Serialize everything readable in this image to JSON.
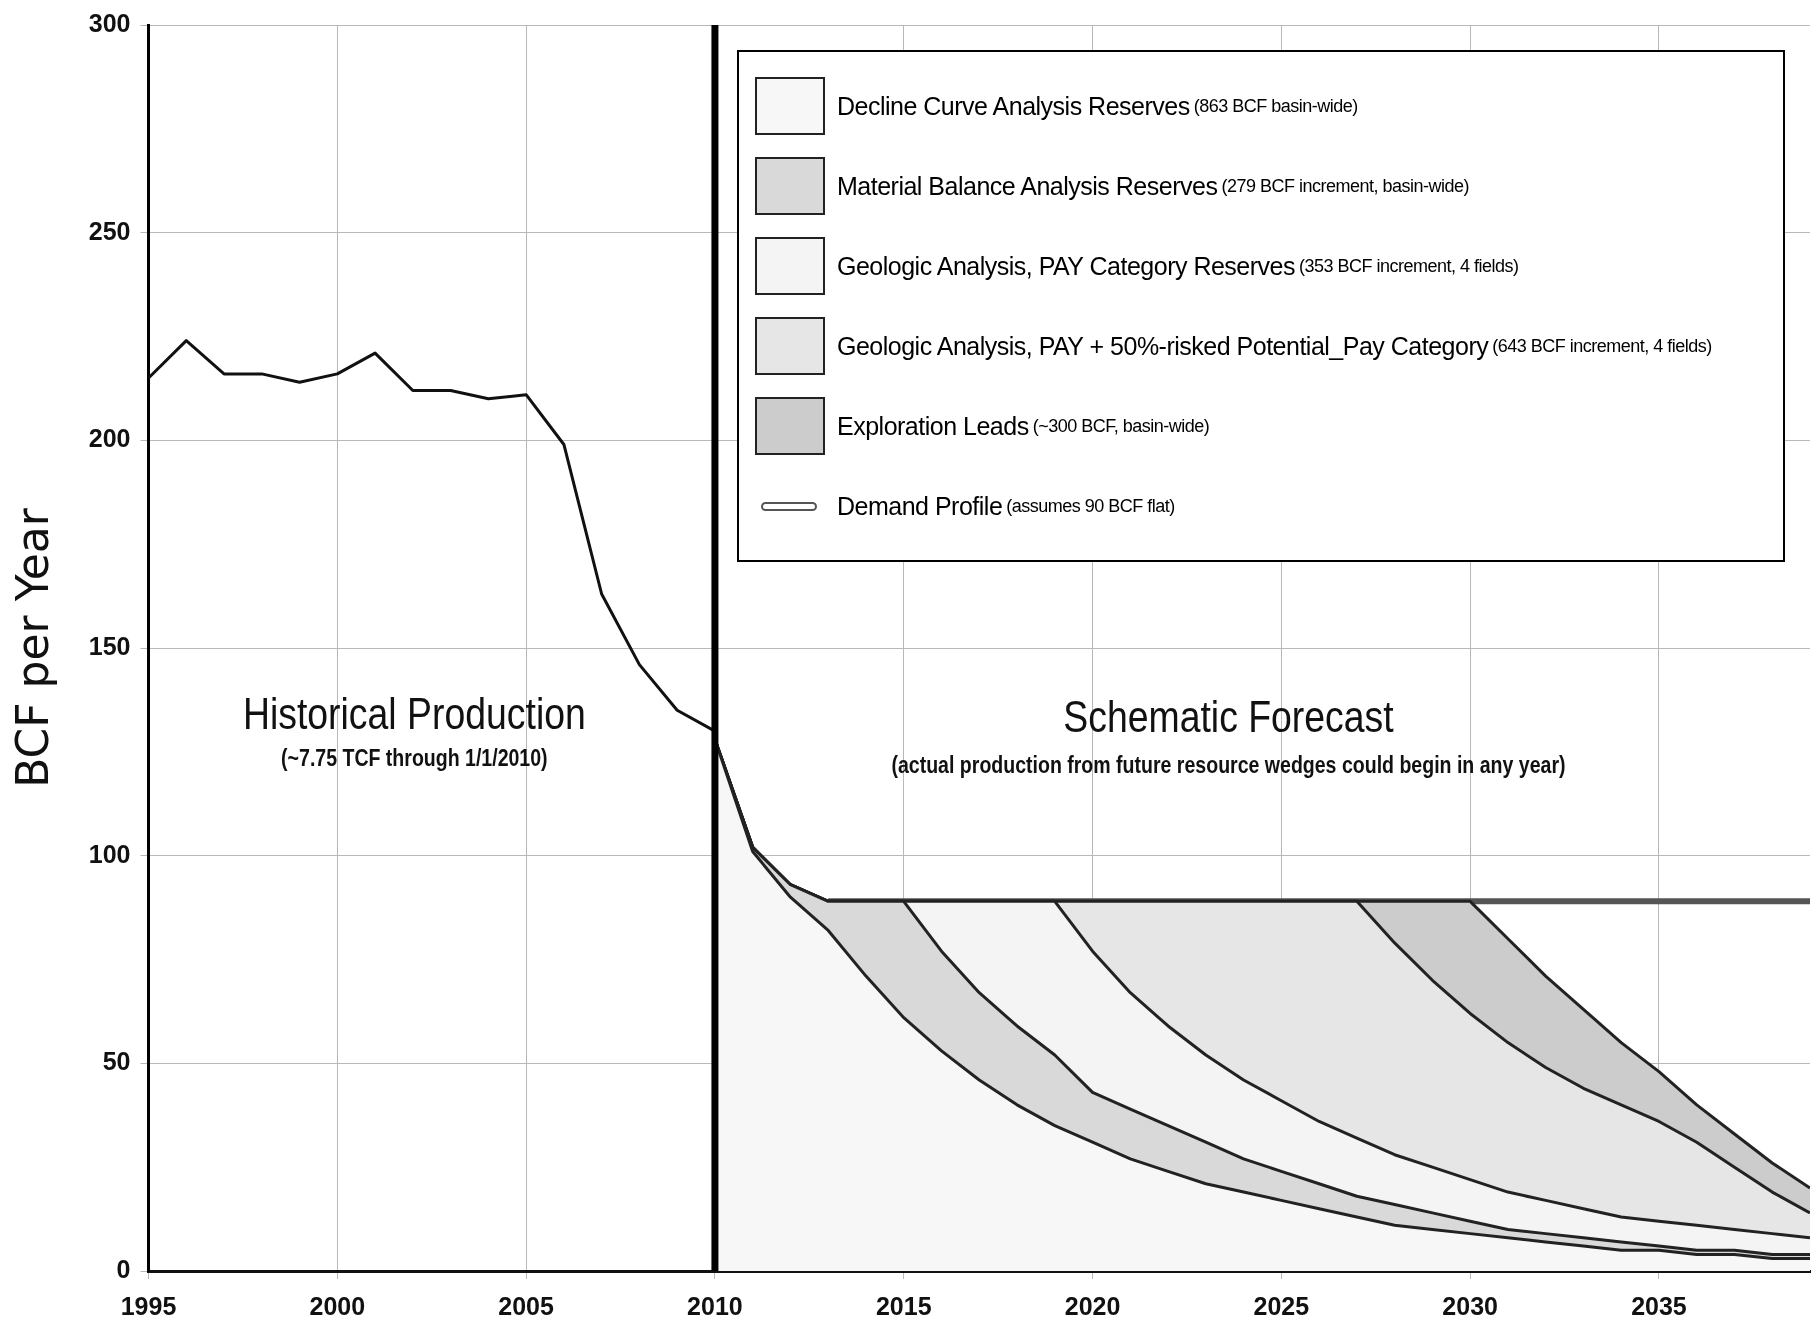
{
  "chart_data": {
    "type": "area",
    "ylabel": "BCF per Year",
    "stacked": true,
    "xlim": [
      1995,
      2039
    ],
    "xticks": [
      1995,
      2000,
      2005,
      2010,
      2015,
      2020,
      2025,
      2030,
      2035
    ],
    "ylim": [
      0,
      300
    ],
    "yticks": [
      0,
      50,
      100,
      150,
      200,
      250,
      300
    ],
    "grid": true,
    "legend": "top right",
    "marker": "none",
    "x": [
      2010,
      2011,
      2012,
      2013,
      2014,
      2015,
      2016,
      2017,
      2018,
      2019,
      2020,
      2021,
      2022,
      2023,
      2024,
      2025,
      2026,
      2027,
      2028,
      2029,
      2030,
      2031,
      2032,
      2033,
      2034,
      2035,
      2036,
      2037,
      2038,
      2039
    ],
    "series": [
      {
        "name": "Decline Curve Analysis Reserves (863 BCF basin-wide)",
        "color": "#f7f7f7",
        "values": [
          128,
          101,
          90,
          82,
          71,
          61,
          53,
          46,
          40,
          35,
          31,
          27,
          24,
          21,
          19,
          17,
          15,
          13,
          11,
          10,
          9,
          8,
          7,
          6,
          5,
          5,
          4,
          4,
          3,
          3
        ]
      },
      {
        "name": "Material Balance Analysis Reserves (279 BCF increment, basin-wide)",
        "color": "#d9d9d9",
        "values": [
          0,
          1,
          3,
          7,
          18,
          28,
          24,
          21,
          19,
          17,
          12,
          12,
          11,
          10,
          8,
          7,
          6,
          5,
          5,
          4,
          3,
          2,
          2,
          2,
          2,
          1,
          1,
          1,
          1,
          1
        ]
      },
      {
        "name": "Geologic Analysis, PAY Category Reserves (353 BCF increment, 4 fields)",
        "color": "#f4f4f4",
        "values": [
          0,
          0,
          0,
          0,
          0,
          0,
          12,
          22,
          30,
          37,
          34,
          28,
          24,
          21,
          19,
          17,
          15,
          14,
          12,
          11,
          10,
          9,
          8,
          7,
          6,
          6,
          6,
          5,
          5,
          4
        ]
      },
      {
        "name": "Geologic Analysis, PAY + 50%-risked Potential_Pay Category (643 BCF increment, 4 fields)",
        "color": "#e6e6e6",
        "values": [
          0,
          0,
          0,
          0,
          0,
          0,
          0,
          0,
          0,
          0,
          12,
          22,
          30,
          37,
          43,
          48,
          53,
          57,
          51,
          45,
          40,
          36,
          32,
          29,
          27,
          24,
          20,
          15,
          10,
          6
        ]
      },
      {
        "name": "Exploration Leads (~300 BCF, basin-wide)",
        "color": "#cccccc",
        "values": [
          0,
          0,
          0,
          0,
          0,
          0,
          0,
          0,
          0,
          0,
          0,
          0,
          0,
          0,
          0,
          0,
          0,
          0,
          10,
          19,
          27,
          25,
          22,
          19,
          15,
          12,
          9,
          8,
          7,
          6
        ]
      },
      {
        "type": "line",
        "color": "#111111",
        "x": [
          1995,
          1996,
          1997,
          1998,
          1999,
          2000,
          2001,
          2002,
          2003,
          2004,
          2005,
          2006,
          2007,
          2008,
          2009,
          2010
        ],
        "values": [
          215,
          224,
          216,
          216,
          214,
          216,
          221,
          212,
          212,
          210,
          211,
          199,
          163,
          146,
          135,
          130
        ]
      },
      {
        "name": "Demand Profile (assumes 90 BCF flat)",
        "type": "line",
        "color": "#555555",
        "x": [
          2013,
          2039
        ],
        "values": [
          89,
          89
        ]
      }
    ],
    "ref_lines": [
      {
        "axis": "x",
        "value": 2010,
        "color": "#000000"
      }
    ],
    "annotations": [
      "Historical Production",
      "(~7.75 TCF through 1/1/2010)",
      "Schematic Forecast",
      "(actual production from future resource wedges could begin in any year)"
    ]
  }
}
